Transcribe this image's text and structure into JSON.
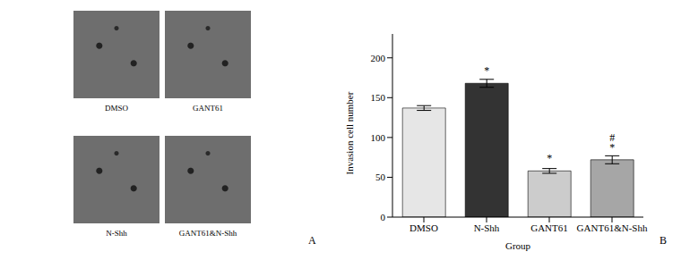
{
  "panel_a": {
    "label": "A",
    "images": [
      {
        "label": "DMSO"
      },
      {
        "label": "GANT61"
      },
      {
        "label": "N-Shh"
      },
      {
        "label": "GANT61&N-Shh"
      }
    ]
  },
  "chart_data": {
    "type": "bar",
    "panel_label": "B",
    "x_label": "Group",
    "y_label": "Invasion cell number",
    "categories": [
      "DMSO",
      "N-Shh",
      "GANT61",
      "GANT61&N-Shh"
    ],
    "values": [
      137,
      168,
      58,
      72
    ],
    "errors": [
      3,
      5,
      3,
      5
    ],
    "colors": [
      "#e6e6e6",
      "#333333",
      "#cccccc",
      "#a6a6a6"
    ],
    "ylim": [
      0,
      230
    ],
    "yticks": [
      0,
      50,
      100,
      150,
      200
    ],
    "grid": false,
    "annotations": [
      {
        "category": "N-Shh",
        "text": "*"
      },
      {
        "category": "GANT61",
        "text": "*"
      },
      {
        "category": "GANT61&N-Shh",
        "text": "#"
      },
      {
        "category": "GANT61&N-Shh",
        "text": "*"
      }
    ]
  }
}
